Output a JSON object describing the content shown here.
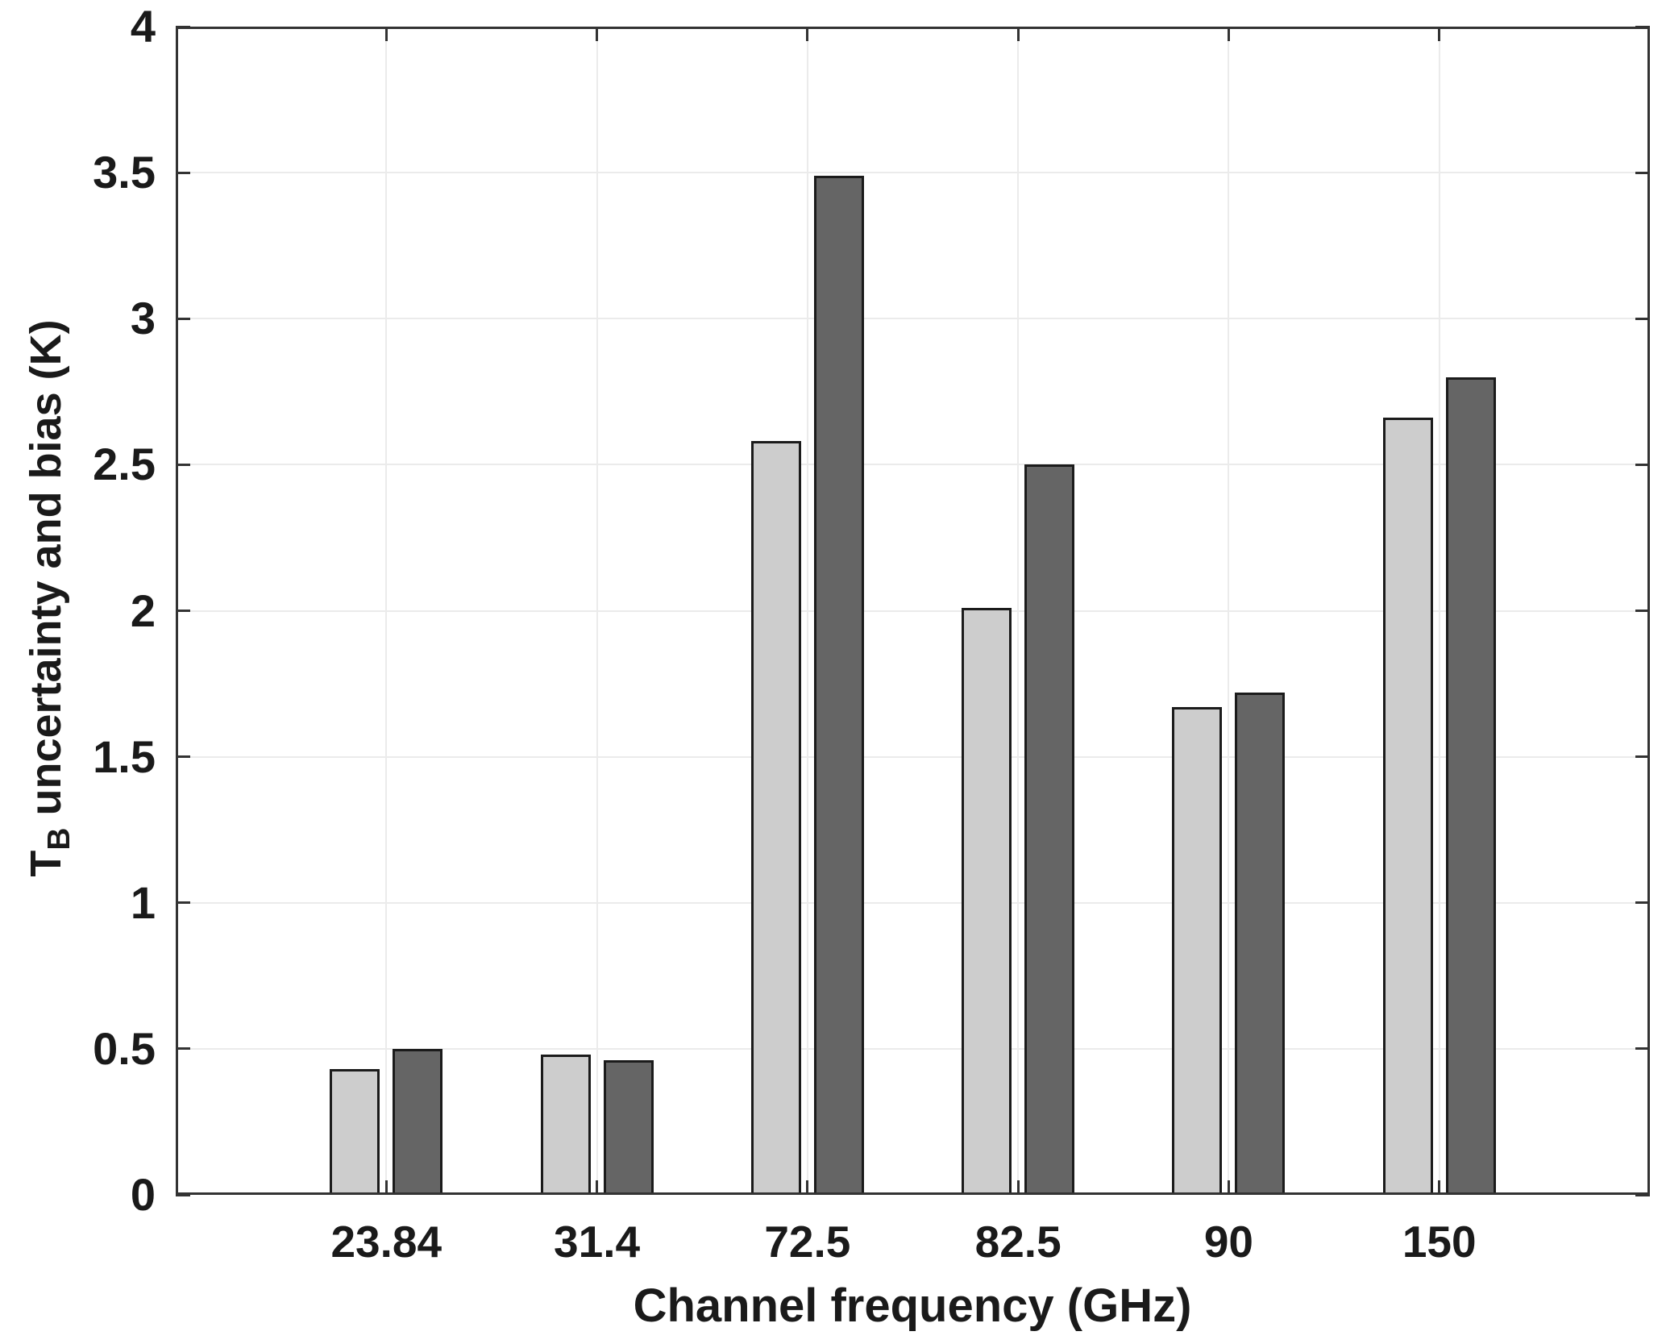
{
  "figure": {
    "background": "#ffffff"
  },
  "chart_data": {
    "type": "bar",
    "title": "",
    "categories": [
      "23.84",
      "31.4",
      "72.5",
      "82.5",
      "90",
      "150"
    ],
    "series": [
      {
        "name": "light-gray",
        "color": "#cdcdcd",
        "values": [
          0.43,
          0.48,
          2.58,
          2.01,
          1.67,
          2.66
        ]
      },
      {
        "name": "dark-gray",
        "color": "#656565",
        "values": [
          0.5,
          0.46,
          3.49,
          2.5,
          1.72,
          2.8
        ]
      }
    ],
    "xlabel": "Channel frequency (GHz)",
    "ylabel": "T_B uncertainty and bias (K)",
    "ylabel_parts": {
      "symbol": "T",
      "subscript": "B",
      "rest": " uncertainty and bias (K)"
    },
    "ylim": [
      0,
      4
    ],
    "yticks": [
      0,
      0.5,
      1,
      1.5,
      2,
      2.5,
      3,
      3.5,
      4
    ],
    "ytick_labels": [
      "0",
      "0.5",
      "1",
      "1.5",
      "2",
      "2.5",
      "3",
      "3.5",
      "4"
    ],
    "grid": true,
    "legend_position": "none",
    "bar_edge_color": "#1b1b1b",
    "gridline_color": "#ebebeb",
    "axis_color": "#333333",
    "text_color": "#1a1a1a"
  }
}
